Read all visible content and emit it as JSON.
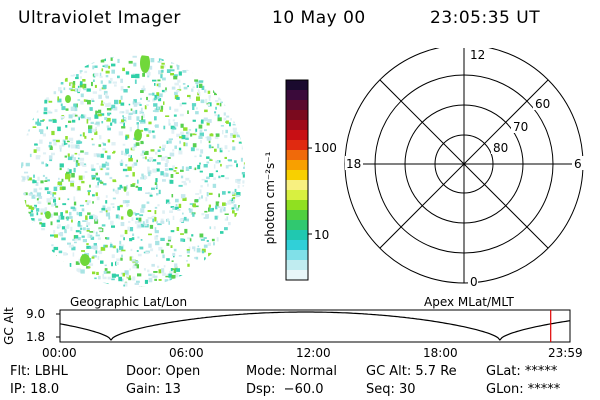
{
  "header": {
    "title": "Ultraviolet Imager",
    "date": "10 May 00",
    "time": "23:05:35 UT"
  },
  "colorbar": {
    "unit_label": "photon cm⁻²s⁻¹",
    "ticks": [
      "100",
      "10"
    ],
    "colors": [
      "#1a0a2e",
      "#3a0a3a",
      "#5a0a2e",
      "#7a0a1e",
      "#a00a1a",
      "#c80f14",
      "#e02a10",
      "#f06a0a",
      "#f8a000",
      "#f8d000",
      "#f8f080",
      "#d8f040",
      "#90e020",
      "#50d040",
      "#30c870",
      "#20c8b0",
      "#30d0d8",
      "#80e0e8",
      "#c0ecf0",
      "#e8f6f8"
    ]
  },
  "polar": {
    "mlt_labels": [
      "12",
      "18",
      "6",
      "0"
    ],
    "lat_labels": [
      "60",
      "70",
      "80"
    ]
  },
  "plot": {
    "left_title": "Geographic Lat/Lon",
    "right_title": "Apex MLat/MLT",
    "y_axis_label": "GC Alt",
    "y_ticks": [
      "9.0",
      "1.8"
    ],
    "x_ticks": [
      "00:00",
      "06:00",
      "12:00",
      "18:00",
      "23:59"
    ],
    "marker_color": "#e00000"
  },
  "footer": {
    "row1": [
      "Flt: LBHL",
      "Door: Open",
      "Mode: Normal",
      "GC Alt: 5.7 Re",
      "GLat: *****"
    ],
    "row2": [
      "IP: 18.0",
      "Gain: 13",
      "Dsp:  −60.0",
      "Seq: 30",
      "GLon: *****"
    ]
  }
}
